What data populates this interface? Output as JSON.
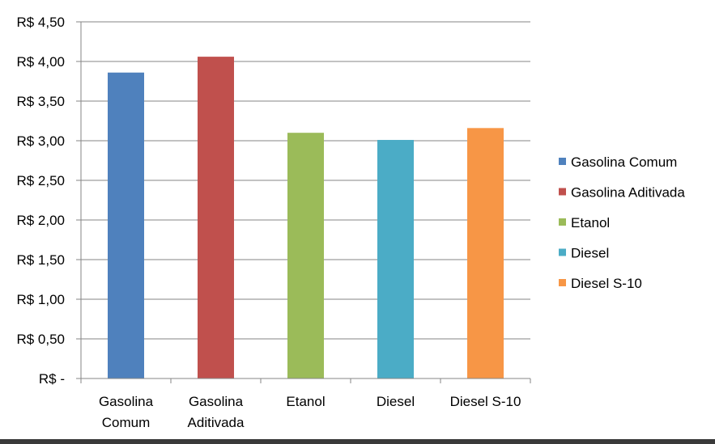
{
  "chart_data": {
    "type": "bar",
    "categories": [
      [
        "Gasolina",
        "Comum"
      ],
      [
        "Gasolina",
        "Aditivada"
      ],
      [
        "Etanol"
      ],
      [
        "Diesel"
      ],
      [
        "Diesel S-10"
      ]
    ],
    "values": [
      3.86,
      4.06,
      3.1,
      3.01,
      3.16
    ],
    "colors": [
      "#4f81bd",
      "#c0504d",
      "#9bbb59",
      "#4bacc6",
      "#f79646"
    ],
    "ylim": [
      0,
      4.5
    ],
    "yticks": [
      0,
      0.5,
      1.0,
      1.5,
      2.0,
      2.5,
      3.0,
      3.5,
      4.0,
      4.5
    ],
    "ytick_labels": [
      "R$ -",
      "R$ 0,50",
      "R$ 1,00",
      "R$ 1,50",
      "R$ 2,00",
      "R$ 2,50",
      "R$ 3,00",
      "R$ 3,50",
      "R$ 4,00",
      "R$ 4,50"
    ],
    "grid": true,
    "legend": {
      "placement": "right",
      "entries": [
        "Gasolina Comum",
        "Gasolina Aditivada",
        "Etanol",
        "Diesel",
        "Diesel S-10"
      ]
    },
    "title": "",
    "xlabel": "",
    "ylabel": ""
  }
}
